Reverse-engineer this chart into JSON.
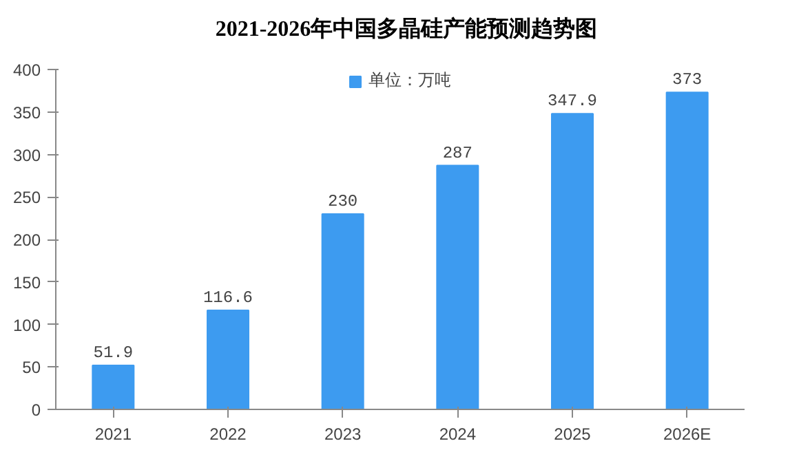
{
  "chart_data": {
    "type": "bar",
    "title": "2021-2026年中国多晶硅产能预测趋势图",
    "categories": [
      "2021",
      "2022",
      "2023",
      "2024",
      "2025",
      "2026E"
    ],
    "series": [
      {
        "name": "单位：万吨",
        "color": "#3d9bf0",
        "values": [
          51.9,
          116.6,
          230,
          287,
          347.9,
          373
        ]
      }
    ],
    "ylim": [
      0,
      400
    ],
    "yticks": [
      0,
      50,
      100,
      150,
      200,
      250,
      300,
      350,
      400
    ],
    "grid": false,
    "legend": "top",
    "data_labels": true
  }
}
